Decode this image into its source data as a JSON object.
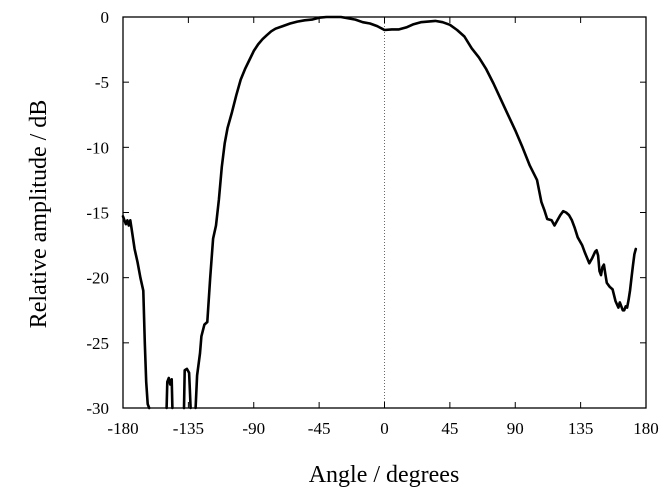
{
  "chart_data": {
    "type": "line",
    "xlabel": "Angle / degrees",
    "ylabel": "Relative amplitude / dB",
    "xlim": [
      -180,
      180
    ],
    "ylim": [
      -30,
      0
    ],
    "xticks": [
      -180,
      -135,
      -90,
      -45,
      0,
      45,
      90,
      135,
      180
    ],
    "yticks": [
      0,
      -5,
      -10,
      -15,
      -20,
      -25,
      -30
    ],
    "grid": false,
    "reference_line": {
      "x": 0,
      "style": "dotted"
    },
    "series": [
      {
        "color": "#000000",
        "segments": [
          [
            [
              -180,
              -15.3
            ],
            [
              -178,
              -15.9
            ],
            [
              -177,
              -15.6
            ],
            [
              -176,
              -16.0
            ],
            [
              -175,
              -15.6
            ],
            [
              -174,
              -16.3
            ],
            [
              -172,
              -17.8
            ],
            [
              -170,
              -18.8
            ],
            [
              -168,
              -20.0
            ],
            [
              -166,
              -21.0
            ],
            [
              -165,
              -25.0
            ],
            [
              -164,
              -28.0
            ],
            [
              -163,
              -29.7
            ],
            [
              -162,
              -30.0
            ]
          ],
          [
            [
              -150,
              -30.0
            ],
            [
              -149.5,
              -28.0
            ],
            [
              -148.5,
              -27.7
            ],
            [
              -147.5,
              -28.2
            ],
            [
              -146.5,
              -27.8
            ],
            [
              -146,
              -30.0
            ]
          ],
          [
            [
              -138,
              -30.0
            ],
            [
              -137.5,
              -27.1
            ],
            [
              -136,
              -27.0
            ],
            [
              -134.5,
              -27.3
            ],
            [
              -134,
              -28.5
            ],
            [
              -133.5,
              -30.0
            ]
          ],
          [
            [
              -130,
              -30.0
            ],
            [
              -129,
              -27.5
            ],
            [
              -127,
              -25.8
            ],
            [
              -126,
              -24.5
            ],
            [
              -124,
              -23.6
            ],
            [
              -122,
              -23.4
            ],
            [
              -120,
              -20.0
            ],
            [
              -118,
              -17.0
            ],
            [
              -116,
              -16.0
            ],
            [
              -114,
              -14.0
            ],
            [
              -112,
              -11.5
            ],
            [
              -110,
              -9.7
            ],
            [
              -108,
              -8.5
            ],
            [
              -105,
              -7.3
            ],
            [
              -102,
              -6.0
            ],
            [
              -99,
              -4.8
            ],
            [
              -96,
              -4.0
            ],
            [
              -93,
              -3.3
            ],
            [
              -90,
              -2.6
            ],
            [
              -87,
              -2.1
            ],
            [
              -84,
              -1.7
            ],
            [
              -81,
              -1.4
            ],
            [
              -78,
              -1.1
            ],
            [
              -75,
              -0.9
            ],
            [
              -70,
              -0.7
            ],
            [
              -65,
              -0.5
            ],
            [
              -60,
              -0.35
            ],
            [
              -55,
              -0.25
            ],
            [
              -50,
              -0.2
            ],
            [
              -45,
              -0.05
            ],
            [
              -40,
              0.0
            ],
            [
              -30,
              0.0
            ],
            [
              -20,
              -0.2
            ],
            [
              -15,
              -0.4
            ],
            [
              -10,
              -0.5
            ],
            [
              -5,
              -0.7
            ],
            [
              0,
              -1.0
            ],
            [
              5,
              -0.95
            ],
            [
              10,
              -0.95
            ],
            [
              15,
              -0.8
            ],
            [
              20,
              -0.55
            ],
            [
              25,
              -0.4
            ],
            [
              30,
              -0.35
            ],
            [
              35,
              -0.3
            ],
            [
              40,
              -0.4
            ],
            [
              45,
              -0.6
            ],
            [
              50,
              -1.0
            ],
            [
              55,
              -1.5
            ],
            [
              60,
              -2.4
            ],
            [
              65,
              -3.1
            ],
            [
              70,
              -4.0
            ],
            [
              75,
              -5.1
            ],
            [
              80,
              -6.3
            ],
            [
              85,
              -7.5
            ],
            [
              90,
              -8.7
            ],
            [
              95,
              -10.0
            ],
            [
              100,
              -11.4
            ],
            [
              105,
              -12.5
            ],
            [
              108,
              -14.2
            ],
            [
              110,
              -14.8
            ],
            [
              112,
              -15.5
            ],
            [
              115,
              -15.6
            ],
            [
              117,
              -16.0
            ],
            [
              119,
              -15.6
            ],
            [
              121,
              -15.2
            ],
            [
              123,
              -14.9
            ],
            [
              125,
              -15.0
            ],
            [
              127,
              -15.2
            ],
            [
              129,
              -15.6
            ],
            [
              131,
              -16.2
            ],
            [
              133,
              -16.9
            ],
            [
              136,
              -17.5
            ],
            [
              138,
              -18.1
            ],
            [
              141,
              -18.9
            ],
            [
              143,
              -18.5
            ],
            [
              145,
              -18.0
            ],
            [
              146,
              -17.9
            ],
            [
              147,
              -18.3
            ],
            [
              148,
              -19.5
            ],
            [
              149,
              -19.8
            ],
            [
              150,
              -19.2
            ],
            [
              151,
              -19.0
            ],
            [
              152,
              -19.7
            ],
            [
              153,
              -20.4
            ],
            [
              155,
              -20.7
            ],
            [
              157,
              -20.9
            ],
            [
              159,
              -21.8
            ],
            [
              161,
              -22.3
            ],
            [
              162,
              -21.9
            ],
            [
              163,
              -22.2
            ],
            [
              164,
              -22.5
            ],
            [
              165,
              -22.5
            ],
            [
              166,
              -22.2
            ],
            [
              167,
              -22.3
            ],
            [
              168,
              -21.7
            ],
            [
              169,
              -21.0
            ],
            [
              170,
              -20.0
            ],
            [
              171,
              -19.1
            ],
            [
              172,
              -18.2
            ],
            [
              173,
              -17.8
            ]
          ]
        ]
      }
    ]
  }
}
